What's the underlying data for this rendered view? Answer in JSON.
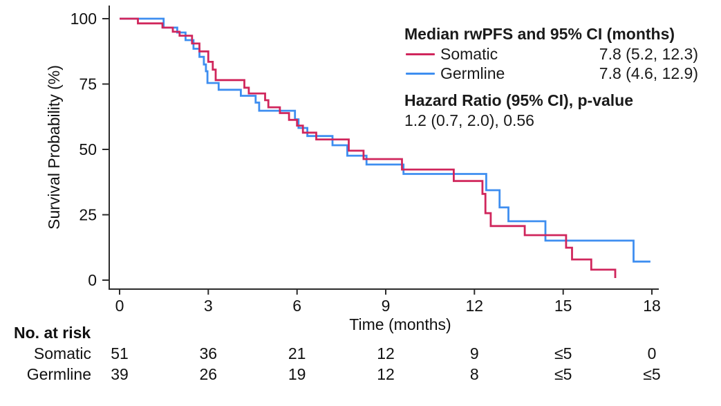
{
  "legend": {
    "title": "Median rwPFS and 95% CI (months)",
    "rows": [
      {
        "name": "Somatic",
        "value": "7.8 (5.2, 12.3)"
      },
      {
        "name": "Germline",
        "value": "7.8 (4.6, 12.9)"
      }
    ],
    "hr_title": "Hazard Ratio (95% CI), p-value",
    "hr_value": "1.2 (0.7, 2.0), 0.56"
  },
  "risk_table": {
    "title": "No. at risk",
    "rows": [
      {
        "name": "Somatic",
        "values": [
          "51",
          "36",
          "21",
          "12",
          "9",
          "≤5",
          "0"
        ]
      },
      {
        "name": "Germline",
        "values": [
          "39",
          "26",
          "19",
          "12",
          "8",
          "≤5",
          "≤5"
        ]
      }
    ]
  },
  "chart_data": {
    "type": "line",
    "subtype": "kaplan-meier-step",
    "title": "",
    "xlabel": "Time (months)",
    "ylabel": "Survival Probability (%)",
    "xlim": [
      0,
      18
    ],
    "ylim": [
      0,
      100
    ],
    "xticks": [
      0,
      3,
      6,
      9,
      12,
      15,
      18
    ],
    "yticks": [
      0,
      25,
      50,
      75,
      100
    ],
    "grid": false,
    "legend_position": "top-right",
    "axis_color": "#2b2b2b",
    "text_color": "#111111",
    "series": [
      {
        "name": "Somatic",
        "color": "#D0265C",
        "median_ci": "7.8 (5.2, 12.3)",
        "end_month": 16.76,
        "points": [
          [
            0,
            100
          ],
          [
            0.62,
            98.2
          ],
          [
            1.45,
            96.6
          ],
          [
            1.8,
            95.0
          ],
          [
            2.03,
            93.5
          ],
          [
            2.45,
            90.5
          ],
          [
            2.7,
            87.5
          ],
          [
            3.0,
            83.5
          ],
          [
            3.15,
            80.5
          ],
          [
            3.25,
            76.5
          ],
          [
            4.22,
            73.6
          ],
          [
            4.37,
            71.4
          ],
          [
            4.92,
            68.8
          ],
          [
            5.03,
            66.1
          ],
          [
            5.42,
            63.9
          ],
          [
            5.73,
            61.3
          ],
          [
            6.0,
            59.1
          ],
          [
            6.2,
            56.4
          ],
          [
            6.65,
            53.8
          ],
          [
            7.75,
            49.5
          ],
          [
            8.25,
            46.3
          ],
          [
            9.55,
            42.3
          ],
          [
            11.3,
            37.9
          ],
          [
            12.27,
            33.0
          ],
          [
            12.37,
            25.6
          ],
          [
            12.55,
            20.7
          ],
          [
            13.7,
            17.2
          ],
          [
            15.1,
            12.4
          ],
          [
            15.3,
            7.9
          ],
          [
            15.95,
            4.0
          ],
          [
            16.76,
            0.8
          ]
        ]
      },
      {
        "name": "Germline",
        "color": "#3E8EF0",
        "median_ci": "7.8 (4.6, 12.9)",
        "end_month": 17.95,
        "points": [
          [
            0,
            100
          ],
          [
            1.49,
            96.6
          ],
          [
            1.95,
            94.7
          ],
          [
            2.23,
            91.8
          ],
          [
            2.5,
            88.5
          ],
          [
            2.7,
            85.4
          ],
          [
            2.85,
            82.5
          ],
          [
            2.92,
            79.9
          ],
          [
            2.97,
            75.4
          ],
          [
            3.35,
            72.8
          ],
          [
            4.1,
            70.5
          ],
          [
            4.6,
            67.9
          ],
          [
            4.72,
            64.8
          ],
          [
            5.93,
            61.5
          ],
          [
            6.05,
            58.2
          ],
          [
            6.35,
            55.1
          ],
          [
            7.2,
            51.6
          ],
          [
            7.7,
            47.6
          ],
          [
            8.35,
            44.2
          ],
          [
            9.6,
            40.6
          ],
          [
            12.4,
            34.4
          ],
          [
            12.85,
            27.8
          ],
          [
            13.15,
            22.5
          ],
          [
            14.4,
            15.1
          ],
          [
            17.38,
            7.1
          ]
        ]
      }
    ]
  }
}
